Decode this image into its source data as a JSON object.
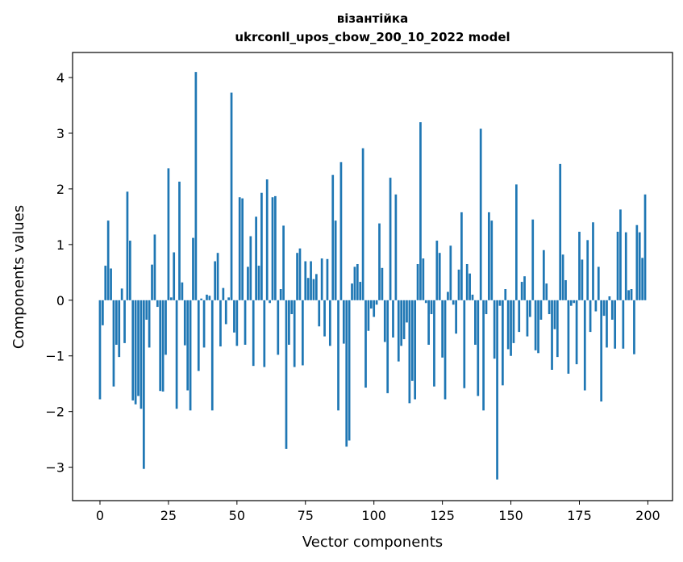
{
  "chart_data": {
    "type": "bar",
    "title_line1": "візантійка",
    "title_line2": "ukrconll_upos_cbow_200_10_2022 model",
    "xlabel": "Vector components",
    "ylabel": "Components values",
    "xlim": [
      -10,
      209
    ],
    "ylim": [
      -3.6,
      4.45
    ],
    "xticks": [
      0,
      25,
      50,
      75,
      100,
      125,
      150,
      175,
      200
    ],
    "yticks": [
      -3,
      -2,
      -1,
      0,
      1,
      2,
      3,
      4
    ],
    "ytick_labels": [
      "−3",
      "−2",
      "−1",
      "0",
      "1",
      "2",
      "3",
      "4"
    ],
    "bar_color": "#1f77b4",
    "grid": false,
    "values": [
      -1.78,
      -0.45,
      0.62,
      1.43,
      0.57,
      -1.55,
      -0.8,
      -1.02,
      0.21,
      -0.77,
      1.95,
      1.07,
      -1.8,
      -1.87,
      -1.72,
      -1.95,
      -3.03,
      -0.35,
      -0.85,
      0.64,
      1.18,
      -0.12,
      -1.63,
      -1.64,
      -0.98,
      2.37,
      0.05,
      0.86,
      -1.95,
      2.13,
      0.32,
      -0.81,
      -1.62,
      -1.98,
      1.12,
      4.1,
      -1.27,
      0.03,
      -0.85,
      0.1,
      0.08,
      -1.98,
      0.7,
      0.85,
      -0.83,
      0.22,
      -0.43,
      0.05,
      3.73,
      -0.58,
      -0.82,
      1.85,
      1.83,
      -0.8,
      0.6,
      1.15,
      -1.18,
      1.5,
      0.62,
      1.93,
      -1.2,
      2.17,
      -0.05,
      1.85,
      1.87,
      -0.98,
      0.2,
      1.34,
      -2.67,
      -0.8,
      -0.25,
      -1.2,
      0.85,
      0.93,
      -1.17,
      0.7,
      0.4,
      0.7,
      0.38,
      0.47,
      -0.47,
      0.75,
      -0.65,
      0.74,
      -0.82,
      2.25,
      1.43,
      -1.98,
      2.48,
      -0.78,
      -2.63,
      -2.52,
      0.3,
      0.6,
      0.65,
      0.33,
      2.73,
      -1.57,
      -0.55,
      -0.15,
      -0.3,
      -0.08,
      1.38,
      0.58,
      -0.75,
      -1.67,
      2.2,
      -0.67,
      1.9,
      -1.1,
      -0.82,
      -0.7,
      -0.4,
      -1.85,
      -1.45,
      -1.78,
      0.65,
      3.2,
      0.75,
      -0.05,
      -0.8,
      -0.25,
      -1.55,
      1.07,
      0.85,
      -1.03,
      -1.78,
      0.15,
      0.98,
      -0.08,
      -0.6,
      0.55,
      1.58,
      -1.58,
      0.65,
      0.48,
      0.1,
      -0.8,
      -1.72,
      3.08,
      -1.98,
      -0.25,
      1.58,
      1.43,
      -1.05,
      -3.22,
      -0.1,
      -1.53,
      0.2,
      -0.88,
      -1.0,
      -0.77,
      2.08,
      -0.57,
      0.33,
      0.43,
      -0.65,
      -0.3,
      1.45,
      -0.9,
      -0.95,
      -0.35,
      0.9,
      0.3,
      -0.25,
      -1.25,
      -0.52,
      -1.02,
      2.45,
      0.82,
      0.36,
      -1.32,
      -0.1,
      -0.05,
      -1.15,
      1.23,
      0.73,
      -1.62,
      1.08,
      -0.57,
      1.4,
      -0.2,
      0.6,
      -1.82,
      -0.28,
      -0.85,
      0.07,
      -0.35,
      -0.87,
      1.23,
      1.63,
      -0.87,
      1.22,
      0.18,
      0.2,
      -0.97,
      1.35,
      1.22,
      0.76,
      1.9
    ]
  }
}
